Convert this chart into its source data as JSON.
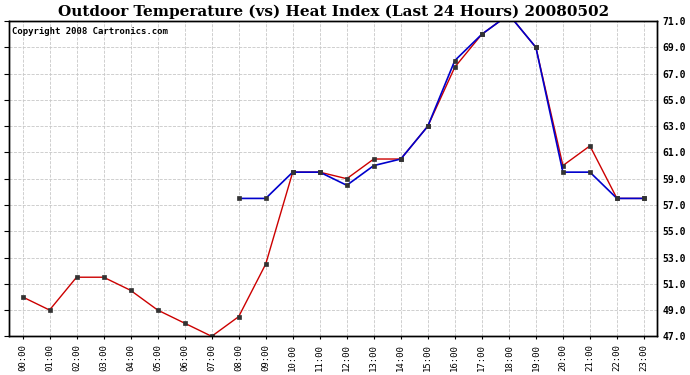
{
  "title": "Outdoor Temperature (vs) Heat Index (Last 24 Hours) 20080502",
  "copyright": "Copyright 2008 Cartronics.com",
  "x_labels": [
    "00:00",
    "01:00",
    "02:00",
    "03:00",
    "04:00",
    "05:00",
    "06:00",
    "07:00",
    "08:00",
    "09:00",
    "10:00",
    "11:00",
    "12:00",
    "13:00",
    "14:00",
    "15:00",
    "16:00",
    "17:00",
    "18:00",
    "19:00",
    "20:00",
    "21:00",
    "22:00",
    "23:00"
  ],
  "outdoor_temp": [
    50.0,
    49.0,
    51.5,
    51.5,
    50.5,
    49.0,
    48.0,
    47.0,
    48.5,
    52.5,
    59.5,
    59.5,
    59.0,
    60.5,
    60.5,
    63.0,
    67.5,
    70.0,
    71.5,
    69.0,
    60.0,
    61.5,
    57.5,
    57.5
  ],
  "heat_index": [
    null,
    null,
    null,
    null,
    null,
    null,
    null,
    null,
    57.5,
    57.5,
    59.5,
    59.5,
    58.5,
    60.0,
    60.5,
    63.0,
    68.0,
    70.0,
    71.5,
    69.0,
    59.5,
    59.5,
    57.5,
    57.5
  ],
  "temp_color": "#cc0000",
  "heat_color": "#0000cc",
  "bg_color": "#ffffff",
  "plot_bg_color": "#ffffff",
  "grid_color": "#c8c8c8",
  "ylim_min": 47.0,
  "ylim_max": 71.0,
  "ytick_step": 2.0,
  "title_fontsize": 11,
  "copyright_fontsize": 6.5
}
